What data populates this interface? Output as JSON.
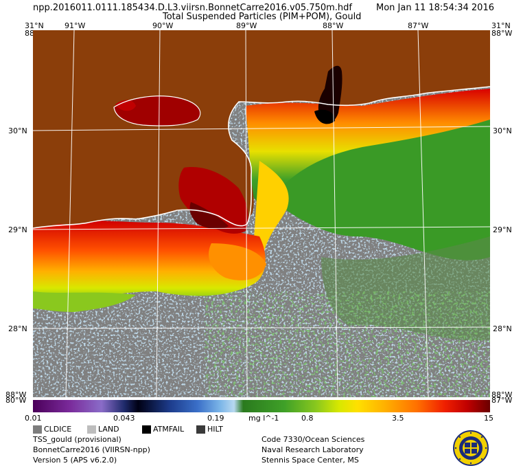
{
  "header": {
    "filename": "npp.2016011.0111.185434.D.L3.viirsn.BonnetCarre2016.v05.750m.hdf",
    "datetime": "Mon Jan 11 18:54:34 2016",
    "product": "Total Suspended Particles (PIM+POM), Gould"
  },
  "axes": {
    "top_lon": [
      "91°W",
      "90°W",
      "89°W",
      "88°W",
      "87°W"
    ],
    "lat_left": [
      "30°N",
      "29°N",
      "28°N"
    ],
    "lat_right": [
      "30°N",
      "29°N",
      "28°N"
    ],
    "corner_top_left": "31°N",
    "corner_top_left_b": "88°W",
    "corner_top_right": "31°N",
    "corner_top_right_b": "88°W",
    "corner_bottom_left": "88°W",
    "corner_bottom_left_b": "80°W",
    "corner_bottom_right": "88°W",
    "corner_bottom_right_b": "87°W"
  },
  "colorbar": {
    "ticks": [
      "0.01",
      "0.043",
      "0.19",
      "mg l^-1",
      "0.8",
      "3.5",
      "15"
    ],
    "scale": "log"
  },
  "legend": {
    "items": [
      {
        "label": "CLDICE",
        "color": "#7d7d7d"
      },
      {
        "label": "LAND",
        "color": "#bdbdbd"
      },
      {
        "label": "ATMFAIL",
        "color": "#000000"
      },
      {
        "label": "HILT",
        "color": "#3a3a3a"
      }
    ]
  },
  "footer": {
    "left": [
      "TSS_gould (provisional)",
      "BonnetCarre2016 (VIIRSN-npp)",
      "Version 5 (APS v6.2.0)"
    ],
    "right": [
      "Code 7330/Ocean Sciences",
      "Naval Research Laboratory",
      "Stennis Space Center, MS"
    ]
  },
  "colors": {
    "land": "#8b3e0a",
    "cloud": "#808080",
    "sediment_high": "#c00000",
    "sediment_mid": "#ff9000",
    "sediment_low": "#3fa028",
    "grid": "#ffffff"
  }
}
